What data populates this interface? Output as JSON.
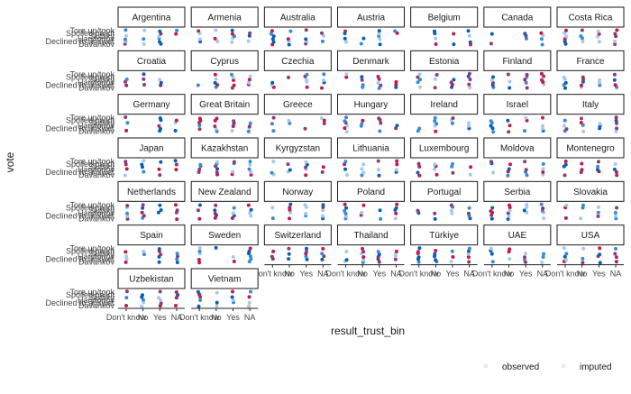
{
  "chart_data": {
    "type": "scatter",
    "subtype": "faceted dot strip plot (jittered)",
    "xlabel": "result_trust_bin",
    "ylabel": "vote",
    "x_categories": [
      "Don't know",
      "No",
      "Yes",
      "NA"
    ],
    "y_categories": [
      "Davankov",
      "Declined to answer",
      "Harytonov",
      "Slutsky",
      "Spoiled ballot",
      "Tore up/took"
    ],
    "legend": {
      "placement": "bottom-right",
      "entries": [
        {
          "label": "observed",
          "color": "#e8e9f2"
        },
        {
          "label": "imputed",
          "color": "#f0e4ea"
        }
      ]
    },
    "colors": {
      "observed_light": "#a8c8e8",
      "observed_mid": "#3a8ad2",
      "observed_dark": "#0a5fb4",
      "imputed_dark": "#c01a4f",
      "imputed_mid": "#8e3b72",
      "panel_border": "#1a1a1a",
      "axis_line": "#222222",
      "tick_text": "#444444"
    },
    "facets": [
      "Argentina",
      "Armenia",
      "Australia",
      "Austria",
      "Belgium",
      "Canada",
      "Costa Rica",
      "Croatia",
      "Cyprus",
      "Czechia",
      "Denmark",
      "Estonia",
      "Finland",
      "France",
      "Germany",
      "Great Britain",
      "Greece",
      "Hungary",
      "Ireland",
      "Israel",
      "Italy",
      "Japan",
      "Kazakhstan",
      "Kyrgyzstan",
      "Lithuania",
      "Luxembourg",
      "Moldova",
      "Montenegro",
      "Netherlands",
      "New Zealand",
      "Norway",
      "Poland",
      "Portugal",
      "Serbia",
      "Slovakia",
      "Spain",
      "Sweden",
      "Switzerland",
      "Thailand",
      "Türkiye",
      "UAE",
      "USA",
      "Uzbekistan",
      "Vietnam"
    ],
    "facet_grid": {
      "columns": 7,
      "rows": 7
    }
  }
}
